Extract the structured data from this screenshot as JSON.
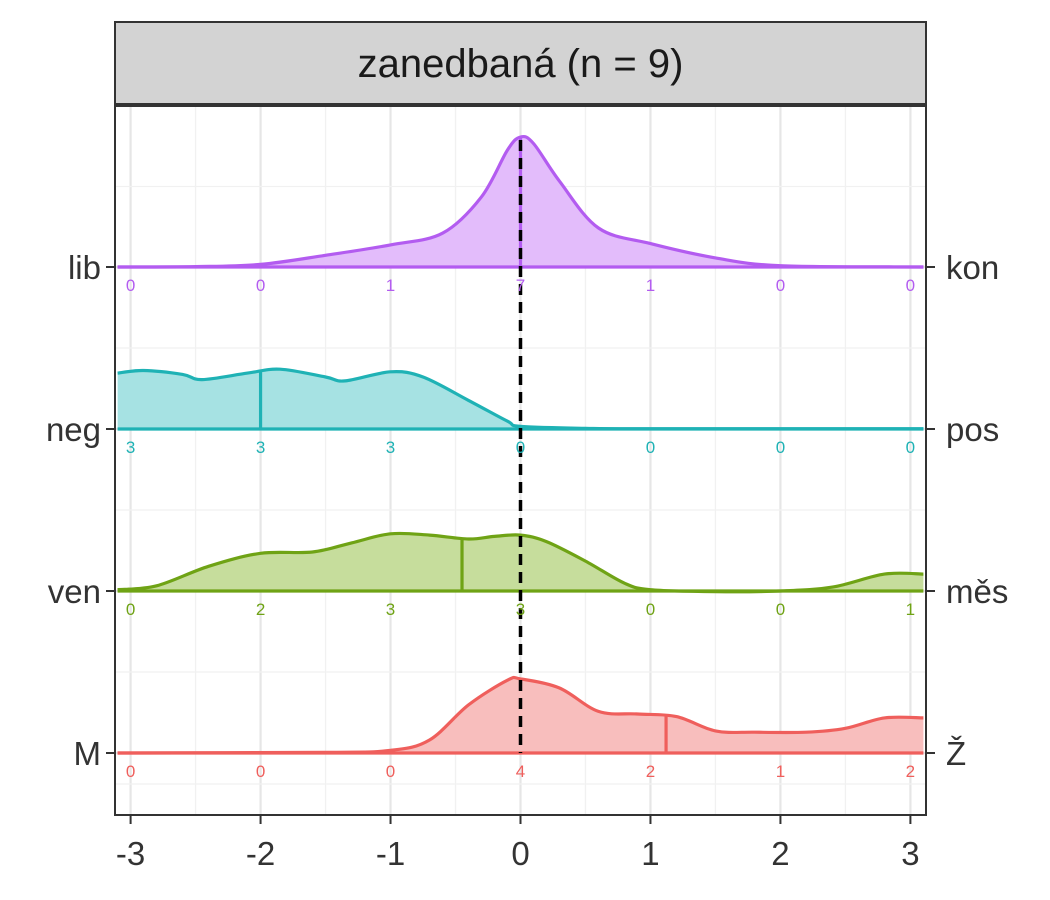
{
  "chart_data": {
    "type": "ridgeline-density",
    "facet_title": "zanedbaná (n = 9)",
    "xlim": [
      -3.12,
      3.12
    ],
    "x_ticks": [
      -3,
      -2,
      -1,
      0,
      1,
      2,
      3
    ],
    "x_tick_labels": [
      "-3",
      "-2",
      "-1",
      "0",
      "1",
      "2",
      "3"
    ],
    "reference_line_x": 0,
    "grid": true,
    "count_positions": [
      -3,
      -2,
      -1,
      0,
      1,
      2,
      3
    ],
    "rows": [
      {
        "left_label": "lib",
        "right_label": "kon",
        "color": "#B35CF0",
        "fill": "#E3BCFB",
        "mean": 0,
        "counts": [
          "0",
          "0",
          "1",
          "7",
          "1",
          "0",
          "0"
        ],
        "curve": [
          [
            -3.1,
            0
          ],
          [
            -2.5,
            0.003
          ],
          [
            -2.0,
            0.02
          ],
          [
            -1.5,
            0.09
          ],
          [
            -1.0,
            0.17
          ],
          [
            -0.6,
            0.26
          ],
          [
            -0.3,
            0.54
          ],
          [
            -0.1,
            0.9
          ],
          [
            0.0,
            1.0
          ],
          [
            0.1,
            0.95
          ],
          [
            0.3,
            0.66
          ],
          [
            0.6,
            0.3
          ],
          [
            1.0,
            0.18
          ],
          [
            1.5,
            0.07
          ],
          [
            2.0,
            0.01
          ],
          [
            3.1,
            0
          ]
        ]
      },
      {
        "left_label": "neg",
        "right_label": "pos",
        "color": "#1FB2B5",
        "fill": "#A6E2E3",
        "mean": -2,
        "counts": [
          "3",
          "3",
          "3",
          "0",
          "0",
          "0",
          "0"
        ],
        "curve": [
          [
            -3.1,
            0.43
          ],
          [
            -2.9,
            0.45
          ],
          [
            -2.6,
            0.42
          ],
          [
            -2.45,
            0.38
          ],
          [
            -2.1,
            0.43
          ],
          [
            -1.85,
            0.46
          ],
          [
            -1.5,
            0.4
          ],
          [
            -1.35,
            0.37
          ],
          [
            -1.0,
            0.44
          ],
          [
            -0.75,
            0.4
          ],
          [
            -0.4,
            0.22
          ],
          [
            -0.1,
            0.06
          ],
          [
            0.0,
            0.02
          ],
          [
            0.5,
            0.005
          ],
          [
            1.0,
            0.002
          ],
          [
            3.1,
            0.002
          ]
        ]
      },
      {
        "left_label": "ven",
        "right_label": "měs",
        "color": "#6FA315",
        "fill": "#C6DD9C",
        "mean": -0.45,
        "counts": [
          "0",
          "2",
          "3",
          "3",
          "0",
          "0",
          "1"
        ],
        "curve": [
          [
            -3.1,
            0.01
          ],
          [
            -2.8,
            0.04
          ],
          [
            -2.4,
            0.19
          ],
          [
            -2.0,
            0.29
          ],
          [
            -1.6,
            0.3
          ],
          [
            -1.3,
            0.37
          ],
          [
            -1.0,
            0.44
          ],
          [
            -0.7,
            0.43
          ],
          [
            -0.4,
            0.4
          ],
          [
            -0.2,
            0.42
          ],
          [
            0.0,
            0.43
          ],
          [
            0.2,
            0.38
          ],
          [
            0.5,
            0.23
          ],
          [
            0.8,
            0.06
          ],
          [
            1.0,
            0.01
          ],
          [
            1.5,
            -0.005
          ],
          [
            2.0,
            0.0
          ],
          [
            2.4,
            0.03
          ],
          [
            2.8,
            0.13
          ],
          [
            3.1,
            0.13
          ]
        ]
      },
      {
        "left_label": "M",
        "right_label": "Ž",
        "color": "#EF5F5C",
        "fill": "#F8BEBD",
        "mean": 1.12,
        "counts": [
          "0",
          "0",
          "0",
          "4",
          "2",
          "1",
          "2"
        ],
        "curve": [
          [
            -3.1,
            0
          ],
          [
            -1.5,
            0.005
          ],
          [
            -1.0,
            0.02
          ],
          [
            -0.7,
            0.1
          ],
          [
            -0.4,
            0.37
          ],
          [
            -0.1,
            0.56
          ],
          [
            0.0,
            0.57
          ],
          [
            0.3,
            0.5
          ],
          [
            0.6,
            0.32
          ],
          [
            0.9,
            0.3
          ],
          [
            1.2,
            0.28
          ],
          [
            1.5,
            0.17
          ],
          [
            1.8,
            0.16
          ],
          [
            2.2,
            0.16
          ],
          [
            2.5,
            0.19
          ],
          [
            2.8,
            0.27
          ],
          [
            3.1,
            0.27
          ]
        ]
      }
    ]
  }
}
